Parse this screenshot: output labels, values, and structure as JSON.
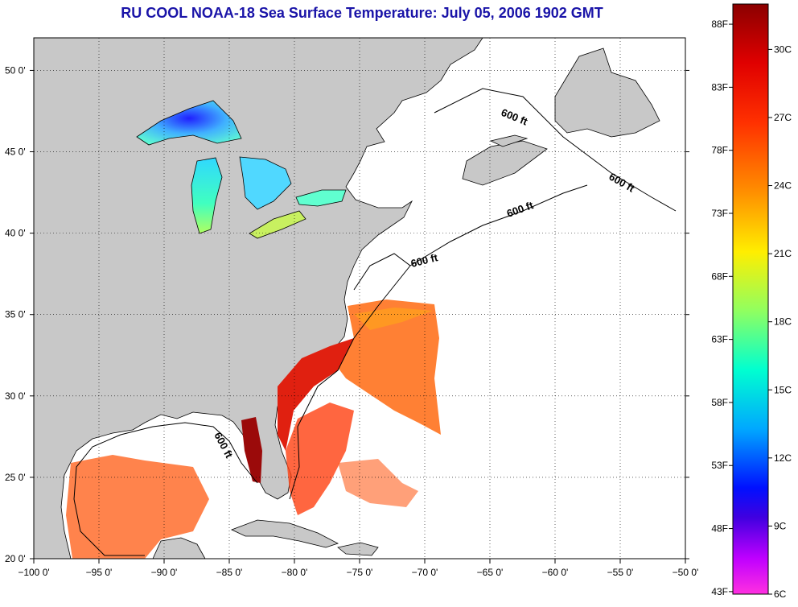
{
  "title": "RU COOL  NOAA-18  Sea Surface Temperature:  July 05, 2006 1902 GMT",
  "map": {
    "lon_range": [
      -100,
      -50
    ],
    "lat_range": [
      20,
      52
    ],
    "lon_ticks": [
      {
        "value": -100,
        "label": "−100 0'"
      },
      {
        "value": -95,
        "label": "−95 0'"
      },
      {
        "value": -90,
        "label": "−90 0'"
      },
      {
        "value": -85,
        "label": "−85 0'"
      },
      {
        "value": -80,
        "label": "−80 0'"
      },
      {
        "value": -75,
        "label": "−75 0'"
      },
      {
        "value": -70,
        "label": "−70 0'"
      },
      {
        "value": -65,
        "label": "−65 0'"
      },
      {
        "value": -60,
        "label": "−60 0'"
      },
      {
        "value": -55,
        "label": "−55 0'"
      },
      {
        "value": -50,
        "label": "−50 0'"
      }
    ],
    "lat_ticks": [
      {
        "value": 20,
        "label": "20 0'"
      },
      {
        "value": 25,
        "label": "25 0'"
      },
      {
        "value": 30,
        "label": "30 0'"
      },
      {
        "value": 35,
        "label": "35 0'"
      },
      {
        "value": 40,
        "label": "40 0'"
      },
      {
        "value": 45,
        "label": "45 0'"
      },
      {
        "value": 50,
        "label": "50 0'"
      }
    ],
    "contour_label": "600 ft",
    "grid": "dotted",
    "land_color": "#c8c8c8",
    "ocean_color": "#ffffff"
  },
  "colorbar": {
    "range_c": [
      6,
      32
    ],
    "fahrenheit_labels": [
      "88F",
      "83F",
      "78F",
      "73F",
      "68F",
      "63F",
      "58F",
      "53F",
      "48F",
      "43F"
    ],
    "celsius_labels": [
      "30C",
      "27C",
      "24C",
      "21C",
      "18C",
      "15C",
      "12C",
      "9C",
      "6C"
    ],
    "colors_top_to_bottom": [
      "#8b0000",
      "#ff0000",
      "#ff8c00",
      "#ffff00",
      "#00ffff",
      "#0000ff",
      "#ff00ff"
    ]
  }
}
